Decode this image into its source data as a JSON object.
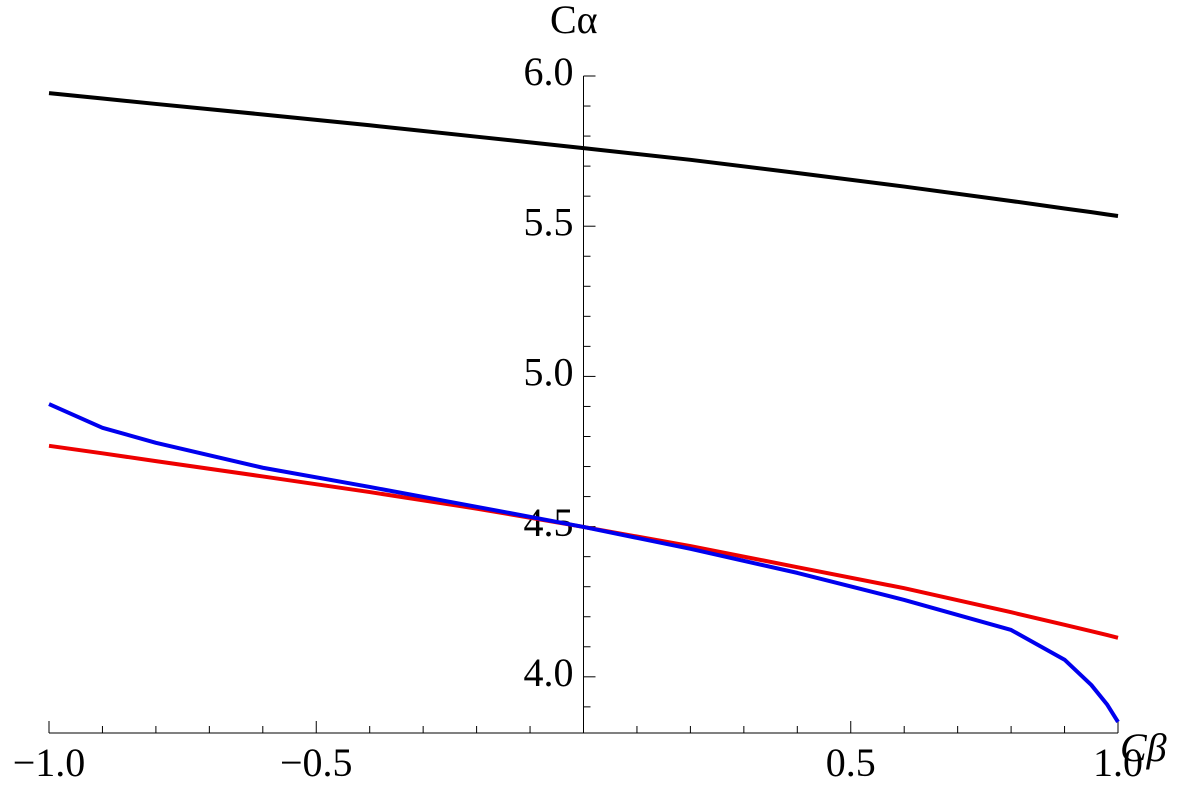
{
  "chart_data": {
    "type": "line",
    "x_label": "Cβ",
    "y_label": "Cα",
    "x": [
      -1,
      -0.9,
      -0.8,
      -0.6,
      -0.4,
      -0.2,
      0,
      0.2,
      0.4,
      0.6,
      0.8,
      0.9,
      0.95,
      0.98,
      1
    ],
    "series": [
      {
        "color": "#000000",
        "values": [
          5.943,
          5.925,
          5.907,
          5.872,
          5.836,
          5.798,
          5.76,
          5.721,
          5.677,
          5.632,
          5.584,
          5.559,
          5.547,
          5.539,
          5.534
        ]
      },
      {
        "color": "#ee0000",
        "values": [
          4.769,
          4.744,
          4.718,
          4.667,
          4.615,
          4.56,
          4.499,
          4.435,
          4.365,
          4.295,
          4.215,
          4.173,
          4.152,
          4.139,
          4.13
        ]
      },
      {
        "color": "#0000ee",
        "values": [
          4.908,
          4.829,
          4.779,
          4.696,
          4.632,
          4.566,
          4.499,
          4.426,
          4.346,
          4.256,
          4.156,
          4.057,
          3.973,
          3.907,
          3.85
        ]
      }
    ],
    "xlim": [
      -1,
      1
    ],
    "ylim": [
      3.813,
      6.0
    ],
    "xticks": [
      {
        "value": -1,
        "label": "−1.0"
      },
      {
        "value": -0.5,
        "label": "−0.5"
      },
      0.5,
      {
        "value": 1,
        "label": "1.0"
      }
    ],
    "yticks": [
      {
        "value": 4,
        "label": "4.0"
      },
      4.5,
      {
        "value": 5,
        "label": "5.0"
      },
      5.5,
      {
        "value": 6,
        "label": "6.0"
      }
    ],
    "xminorticks": [
      -0.9,
      -0.8,
      -0.7,
      -0.6,
      -0.4,
      -0.3,
      -0.2,
      -0.1,
      0.1,
      0.2,
      0.3,
      0.4,
      0.6,
      0.7,
      0.8,
      0.9
    ],
    "yminorticks": [
      3.9,
      4.1,
      4.2,
      4.3,
      4.4,
      4.6,
      4.7,
      4.8,
      4.9,
      5.1,
      5.2,
      5.3,
      5.4,
      5.6,
      5.7,
      5.8,
      5.9
    ]
  }
}
